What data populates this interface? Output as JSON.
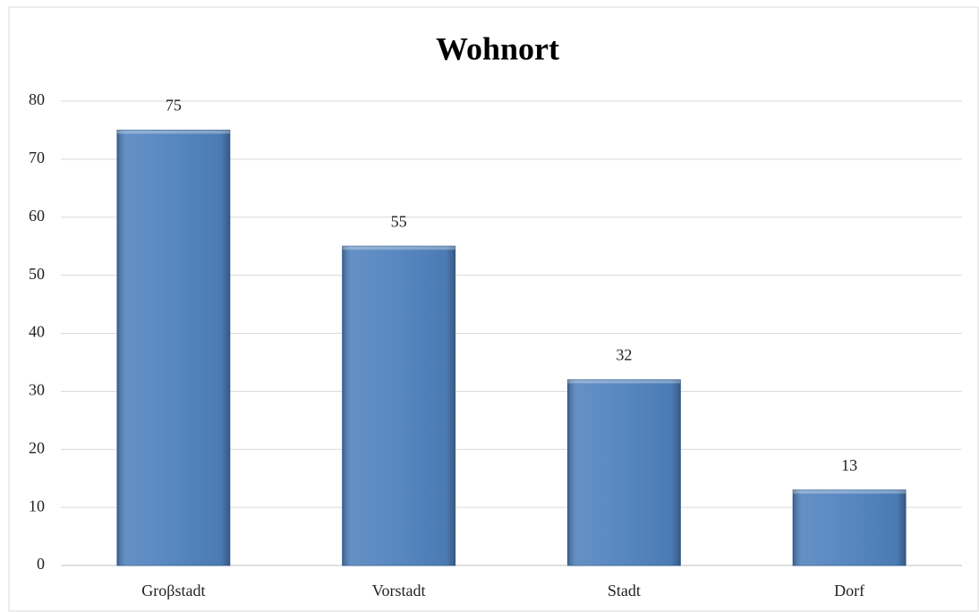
{
  "chart_data": {
    "type": "bar",
    "title": "Wohnort",
    "categories": [
      "Groβstadt",
      "Vorstadt",
      "Stadt",
      "Dorf"
    ],
    "values": [
      75,
      55,
      32,
      13
    ],
    "color": "#4f81bd",
    "ylim": [
      0,
      80
    ],
    "yticks": [
      0,
      10,
      20,
      30,
      40,
      50,
      60,
      70,
      80
    ],
    "grid": true
  }
}
